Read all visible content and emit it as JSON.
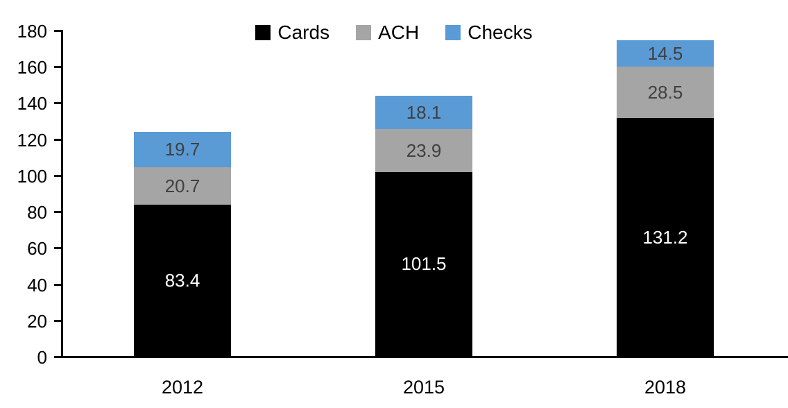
{
  "chart_data": {
    "type": "bar",
    "stacked": true,
    "title": "",
    "xlabel": "",
    "ylabel": "",
    "categories": [
      "2012",
      "2015",
      "2018"
    ],
    "series": [
      {
        "name": "Cards",
        "color": "#000000",
        "label_color": "#ffffff",
        "values": [
          83.4,
          101.5,
          131.2
        ]
      },
      {
        "name": "ACH",
        "color": "#a5a5a5",
        "label_color": "#404040",
        "values": [
          20.7,
          23.9,
          28.5
        ]
      },
      {
        "name": "Checks",
        "color": "#5b9bd5",
        "label_color": "#404040",
        "values": [
          19.7,
          18.1,
          14.5
        ]
      }
    ],
    "totals": [
      123.8,
      143.5,
      174.2
    ],
    "ylim": [
      0,
      180
    ],
    "ytick_step": 20,
    "ytick_labels": [
      "0",
      "20",
      "40",
      "60",
      "80",
      "100",
      "120",
      "140",
      "160",
      "180"
    ],
    "grid": false,
    "data_labels": true,
    "legend_position": "top-center",
    "legend_entries": [
      "Cards",
      "ACH",
      "Checks"
    ],
    "axis_color": "#000000"
  }
}
